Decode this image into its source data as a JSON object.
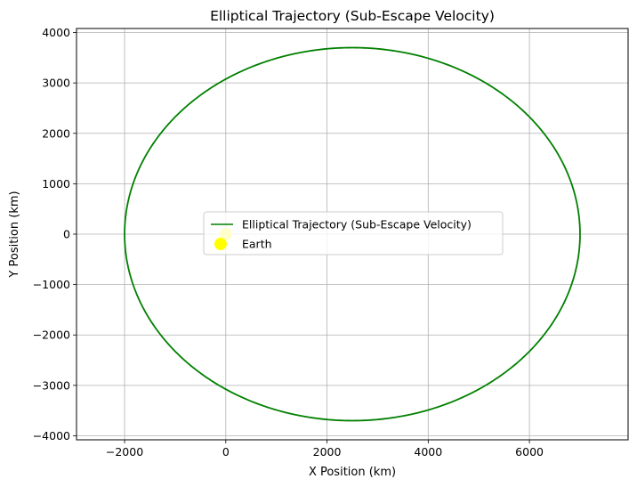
{
  "chart_data": {
    "type": "line",
    "title": "Elliptical Trajectory (Sub-Escape Velocity)",
    "xlabel": "X Position (km)",
    "ylabel": "Y Position (km)",
    "xlim": [
      -2950,
      7950
    ],
    "ylim": [
      -4080,
      4080
    ],
    "xticks": [
      -2000,
      0,
      2000,
      4000,
      6000
    ],
    "yticks": [
      -4000,
      -3000,
      -2000,
      -1000,
      0,
      1000,
      2000,
      3000,
      4000
    ],
    "xtick_labels": [
      "−2000",
      "0",
      "2000",
      "4000",
      "6000"
    ],
    "ytick_labels": [
      "−4000",
      "−3000",
      "−2000",
      "−1000",
      "0",
      "1000",
      "2000",
      "3000",
      "4000"
    ],
    "grid": true,
    "legend_position": "center",
    "series": [
      {
        "name": "Elliptical Trajectory (Sub-Escape Velocity)",
        "kind": "line",
        "color": "#008000",
        "ellipse": {
          "center_x": 2500,
          "center_y": 0,
          "semi_major_x": 4500,
          "semi_minor_y": 3700
        }
      },
      {
        "name": "Earth",
        "kind": "marker",
        "color": "#ffff00",
        "points": [
          {
            "x": 0,
            "y": 0
          }
        ]
      }
    ]
  }
}
